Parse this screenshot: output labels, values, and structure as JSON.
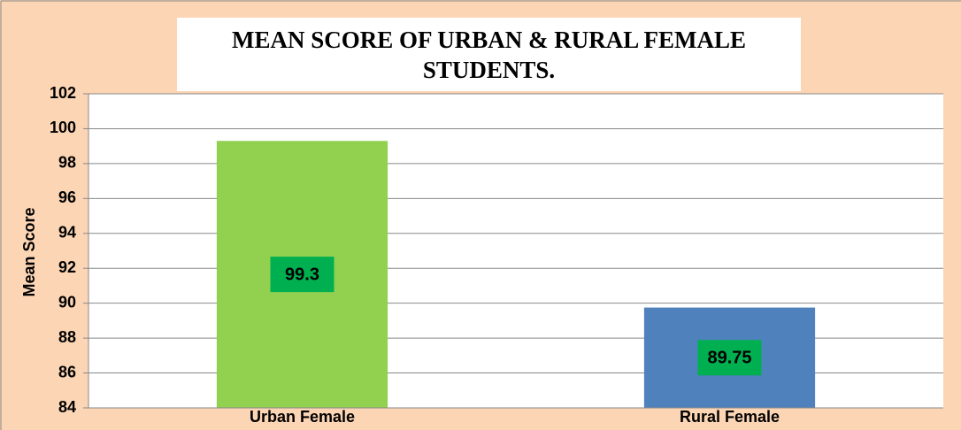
{
  "chart_data": {
    "type": "bar",
    "title": "MEAN SCORE OF URBAN & RURAL FEMALE STUDENTS.",
    "y_label": "Mean Score",
    "categories": [
      "Urban Female",
      "Rural Female"
    ],
    "values": [
      99.3,
      89.75
    ],
    "colors": [
      "#92d050",
      "#4f81bd"
    ],
    "label_color": "#00b050",
    "ylim": [
      84,
      102
    ],
    "yticks": [
      84,
      86,
      88,
      90,
      92,
      94,
      96,
      98,
      100,
      102
    ],
    "grid": true
  }
}
